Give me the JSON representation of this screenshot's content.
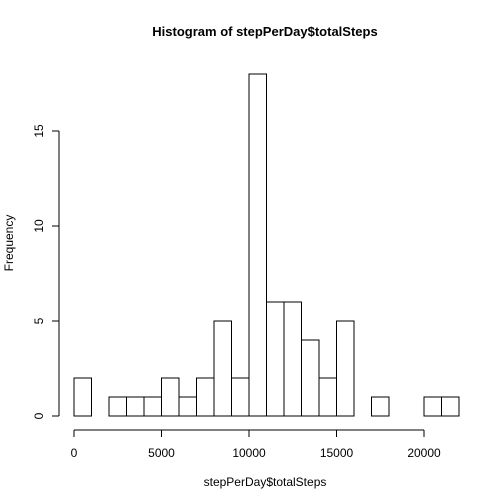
{
  "chart_data": {
    "type": "bar",
    "title": "Histogram of stepPerDay$totalSteps",
    "xlabel": "stepPerDay$totalSteps",
    "ylabel": "Frequency",
    "bin_width": 1000,
    "bins": [
      {
        "from": 0,
        "to": 1000,
        "count": 2
      },
      {
        "from": 1000,
        "to": 2000,
        "count": 0
      },
      {
        "from": 2000,
        "to": 3000,
        "count": 1
      },
      {
        "from": 3000,
        "to": 4000,
        "count": 1
      },
      {
        "from": 4000,
        "to": 5000,
        "count": 1
      },
      {
        "from": 5000,
        "to": 6000,
        "count": 2
      },
      {
        "from": 6000,
        "to": 7000,
        "count": 1
      },
      {
        "from": 7000,
        "to": 8000,
        "count": 2
      },
      {
        "from": 8000,
        "to": 9000,
        "count": 5
      },
      {
        "from": 9000,
        "to": 10000,
        "count": 2
      },
      {
        "from": 10000,
        "to": 11000,
        "count": 18
      },
      {
        "from": 11000,
        "to": 12000,
        "count": 6
      },
      {
        "from": 12000,
        "to": 13000,
        "count": 6
      },
      {
        "from": 13000,
        "to": 14000,
        "count": 4
      },
      {
        "from": 14000,
        "to": 15000,
        "count": 2
      },
      {
        "from": 15000,
        "to": 16000,
        "count": 5
      },
      {
        "from": 16000,
        "to": 17000,
        "count": 0
      },
      {
        "from": 17000,
        "to": 18000,
        "count": 1
      },
      {
        "from": 18000,
        "to": 19000,
        "count": 0
      },
      {
        "from": 19000,
        "to": 20000,
        "count": 0
      },
      {
        "from": 20000,
        "to": 21000,
        "count": 1
      },
      {
        "from": 21000,
        "to": 22000,
        "count": 1
      }
    ],
    "x_ticks": [
      0,
      5000,
      10000,
      15000,
      20000
    ],
    "y_ticks": [
      0,
      5,
      10,
      15
    ],
    "xlim": [
      0,
      22000
    ],
    "ylim": [
      0,
      18
    ],
    "grid": false,
    "legend": "none"
  }
}
